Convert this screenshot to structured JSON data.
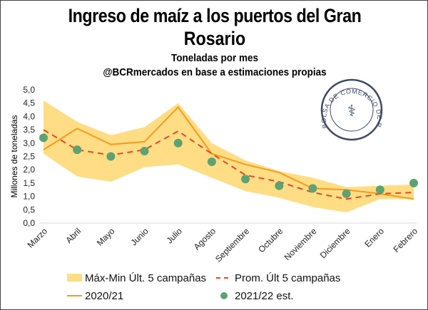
{
  "chart_data": {
    "type": "line",
    "title": "Ingreso de maíz a los puertos del Gran Rosario",
    "subtitle": "Toneladas por mes",
    "subtitle2": "@BCRmercados en base a estimaciones propias",
    "ylabel": "Millones de toneladas",
    "xlabel": "",
    "ylim": [
      0,
      5
    ],
    "yticks": [
      "0,0",
      "0,5",
      "1,0",
      "1,5",
      "2,0",
      "2,5",
      "3,0",
      "3,5",
      "4,0",
      "4,5",
      "5,0"
    ],
    "categories": [
      "Marzo",
      "Abril",
      "Mayo",
      "Junio",
      "Julio",
      "Agosto",
      "Septiembre",
      "Octubre",
      "Noviembre",
      "Diciembre",
      "Enero",
      "Febrero"
    ],
    "series": [
      {
        "name": "Máx-Min Últ. 5 campañas",
        "type": "band",
        "max": [
          4.6,
          3.8,
          3.3,
          3.6,
          4.5,
          3.0,
          2.35,
          1.95,
          1.7,
          1.35,
          1.4,
          1.45
        ],
        "min": [
          2.6,
          1.75,
          1.55,
          2.1,
          2.2,
          1.7,
          1.2,
          0.95,
          0.6,
          0.4,
          0.9,
          0.9
        ],
        "color": "#FFDD85"
      },
      {
        "name": "Prom. Últ 5 campañas",
        "type": "dashed-line",
        "values": [
          3.5,
          2.75,
          2.55,
          2.75,
          3.45,
          2.6,
          1.8,
          1.55,
          1.15,
          0.9,
          1.1,
          1.15
        ],
        "color": "#E8462A"
      },
      {
        "name": "2020/21",
        "type": "line",
        "values": [
          2.75,
          3.55,
          2.95,
          3.05,
          4.35,
          2.6,
          2.2,
          1.9,
          1.3,
          1.25,
          1.1,
          0.9
        ],
        "color": "#F39C1E"
      },
      {
        "name": "2021/22 est.",
        "type": "scatter",
        "values": [
          3.2,
          2.75,
          2.5,
          2.7,
          3.0,
          2.3,
          1.65,
          1.4,
          1.3,
          1.1,
          1.25,
          1.5
        ],
        "color": "#5DA272"
      }
    ],
    "grid": false,
    "legend_position": "bottom"
  },
  "logo": {
    "text": "BOLSA DE COMERCIO DE ROSARIO"
  }
}
